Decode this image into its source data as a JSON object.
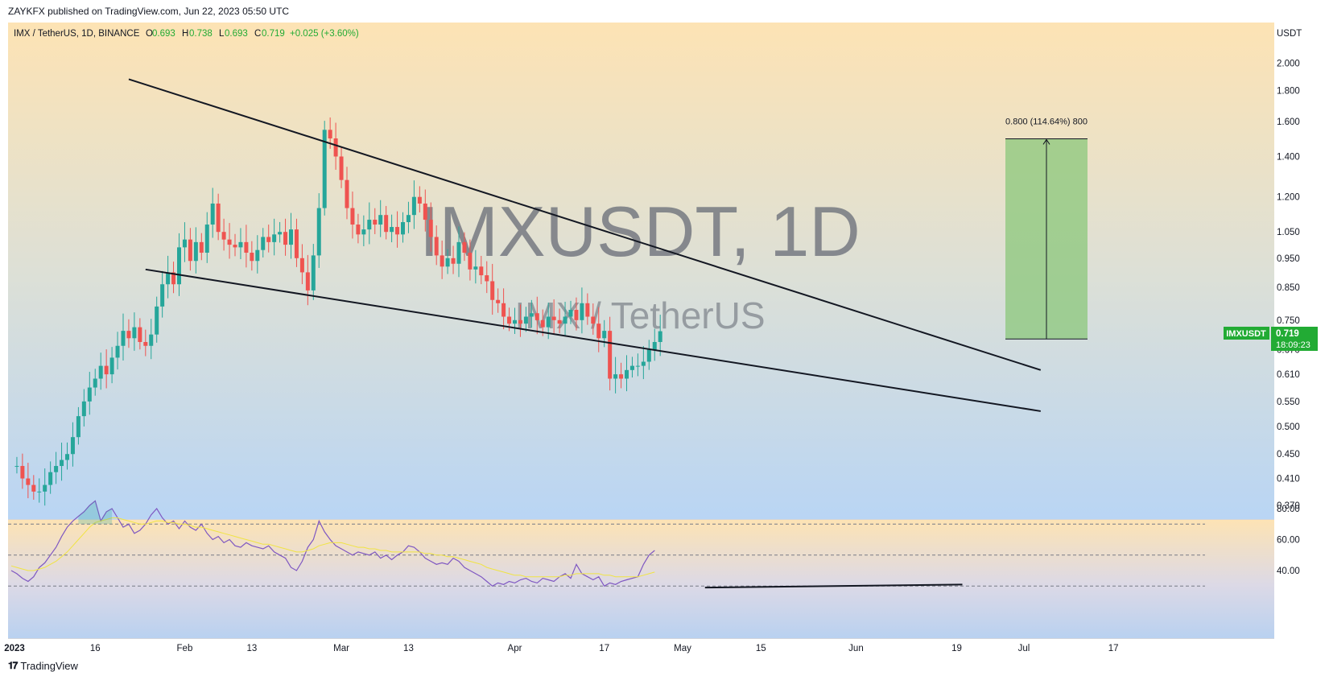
{
  "header": {
    "published": "ZAYKFX published on TradingView.com, Jun 22, 2023 05:50 UTC"
  },
  "legend": {
    "symbol": "IMX / TetherUS, 1D, BINANCE",
    "open_label": "O",
    "open": "0.693",
    "high_label": "H",
    "high": "0.738",
    "low_label": "L",
    "low": "0.693",
    "close_label": "C",
    "close": "0.719",
    "change": "+0.025 (+3.60%)"
  },
  "watermark": {
    "ticker": "IMXUSDT, 1D",
    "name": "IMX / TetherUS"
  },
  "currency_label": "USDT",
  "last_price": {
    "symbol": "IMXUSDT",
    "value": "0.719",
    "countdown": "18:09:23"
  },
  "measure": {
    "label": "0.800 (114.64%) 800"
  },
  "footer": {
    "brand": "TradingView"
  },
  "colors": {
    "bull": "#26a69a",
    "bear": "#ef5350",
    "rsi_line": "#7e57c2",
    "rsi_ma": "#f0e442",
    "trendline": "#131722",
    "target_box": "#8bc77b",
    "last_price_badge": "#22ab34"
  },
  "chart_data": [
    {
      "type": "candlestick",
      "title": "IMX / TetherUS, 1D, BINANCE",
      "scale": "log",
      "y_ticks": [
        "2.000",
        "1.800",
        "1.600",
        "1.400",
        "1.200",
        "1.050",
        "0.950",
        "0.850",
        "0.750",
        "0.670",
        "0.610",
        "0.550",
        "0.500",
        "0.450",
        "0.410",
        "0.370"
      ],
      "x_ticks": [
        "2023",
        "16",
        "Feb",
        "13",
        "Mar",
        "13",
        "Apr",
        "17",
        "May",
        "15",
        "Jun",
        "19",
        "Jul",
        "17"
      ],
      "candles_close_approx": [
        0.43,
        0.41,
        0.4,
        0.39,
        0.39,
        0.4,
        0.42,
        0.43,
        0.44,
        0.45,
        0.48,
        0.52,
        0.55,
        0.58,
        0.6,
        0.63,
        0.61,
        0.65,
        0.68,
        0.72,
        0.7,
        0.73,
        0.69,
        0.68,
        0.71,
        0.79,
        0.86,
        0.9,
        0.86,
        0.99,
        1.02,
        0.94,
        1.01,
        0.97,
        1.08,
        1.17,
        1.05,
        1.02,
        1.0,
        0.99,
        1.01,
        0.97,
        0.94,
        0.98,
        1.03,
        1.01,
        1.04,
        1.05,
        1.0,
        1.06,
        0.95,
        0.9,
        0.84,
        0.96,
        1.15,
        1.55,
        1.5,
        1.4,
        1.28,
        1.15,
        1.08,
        1.04,
        1.06,
        1.1,
        1.08,
        1.12,
        1.05,
        1.07,
        1.04,
        1.09,
        1.12,
        1.2,
        1.17,
        1.1,
        1.03,
        0.96,
        0.92,
        0.95,
        0.93,
        1.01,
        0.97,
        0.91,
        0.92,
        0.89,
        0.87,
        0.81,
        0.8,
        0.76,
        0.74,
        0.75,
        0.74,
        0.76,
        0.77,
        0.75,
        0.73,
        0.76,
        0.75,
        0.74,
        0.76,
        0.78,
        0.75,
        0.8,
        0.76,
        0.74,
        0.7,
        0.72,
        0.6,
        0.61,
        0.6,
        0.62,
        0.63,
        0.63,
        0.64,
        0.67,
        0.69,
        0.719
      ],
      "last_price": 0.719,
      "annotations": [
        {
          "type": "trendline",
          "name": "upper-resistance",
          "from": {
            "x": "Jan 22",
            "y": 1.88
          },
          "to": {
            "x": "Jul 4",
            "y": 0.62
          }
        },
        {
          "type": "trendline",
          "name": "lower-support",
          "from": {
            "x": "Jan 25",
            "y": 0.91
          },
          "to": {
            "x": "Jul 4",
            "y": 0.53
          }
        },
        {
          "type": "price-range",
          "label": "0.800 (114.64%) 800",
          "from": 0.698,
          "to": 1.498
        }
      ]
    },
    {
      "type": "line",
      "title": "RSI",
      "y_ticks": [
        "80.00",
        "60.00",
        "40.00"
      ],
      "bands": [
        70,
        50,
        30
      ],
      "series": [
        {
          "values": [
            40,
            38,
            35,
            33,
            36,
            42,
            45,
            50,
            55,
            62,
            68,
            72,
            75,
            78,
            82,
            85,
            72,
            78,
            80,
            74,
            68,
            70,
            64,
            66,
            70,
            76,
            80,
            74,
            70,
            72,
            67,
            72,
            68,
            66,
            70,
            64,
            60,
            62,
            58,
            60,
            56,
            55,
            58,
            56,
            55,
            54,
            56,
            52,
            50,
            48,
            42,
            40,
            46,
            55,
            60,
            72,
            65,
            60,
            56,
            54,
            52,
            50,
            52,
            51,
            50,
            52,
            48,
            50,
            47,
            50,
            52,
            56,
            55,
            52,
            48,
            46,
            44,
            45,
            44,
            48,
            46,
            42,
            40,
            38,
            36,
            33,
            30,
            32,
            31,
            33,
            32,
            34,
            35,
            33,
            32,
            35,
            34,
            33,
            36,
            38,
            35,
            44,
            38,
            36,
            34,
            36,
            30,
            32,
            31,
            33,
            34,
            35,
            36,
            44,
            50,
            53
          ]
        },
        {
          "values": [
            43,
            42,
            41,
            40,
            40,
            41,
            42,
            44,
            46,
            49,
            52,
            56,
            60,
            64,
            68,
            71,
            72,
            73,
            74,
            74,
            73,
            72,
            71,
            70,
            70,
            71,
            72,
            72,
            71,
            71,
            70,
            70,
            69,
            68,
            68,
            67,
            66,
            65,
            64,
            63,
            62,
            61,
            60,
            59,
            58,
            57,
            57,
            56,
            55,
            54,
            53,
            52,
            52,
            53,
            54,
            56,
            57,
            58,
            58,
            58,
            57,
            56,
            55,
            55,
            54,
            54,
            53,
            53,
            52,
            52,
            52,
            52,
            52,
            52,
            51,
            51,
            50,
            50,
            49,
            49,
            48,
            47,
            46,
            45,
            44,
            42,
            41,
            40,
            39,
            38,
            37,
            37,
            36,
            36,
            36,
            36,
            36,
            36,
            36,
            37,
            37,
            38,
            38,
            38,
            38,
            38,
            37,
            37,
            36,
            36,
            36,
            36,
            36,
            37,
            38,
            39
          ]
        }
      ],
      "annotations": [
        {
          "type": "trendline",
          "name": "rsi-bullish-divergence",
          "from": {
            "x": "May 5",
            "y": 29
          },
          "to": {
            "x": "Jun 20",
            "y": 31
          }
        }
      ]
    }
  ]
}
